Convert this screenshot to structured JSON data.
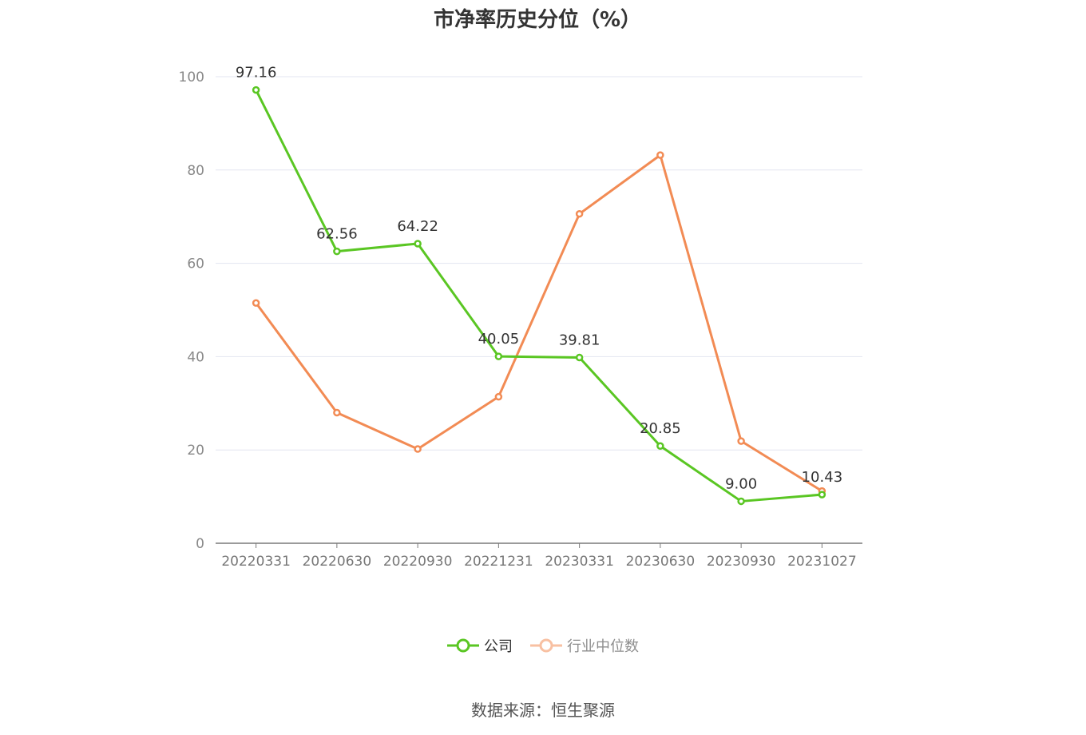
{
  "chart_data": {
    "type": "line",
    "title": "市净率历史分位（%）",
    "categories": [
      "20220331",
      "20220630",
      "20220930",
      "20221231",
      "20230331",
      "20230630",
      "20230930",
      "20231027"
    ],
    "series": [
      {
        "name": "公司",
        "color": "#5ac623",
        "values": [
          97.16,
          62.56,
          64.22,
          40.05,
          39.81,
          20.85,
          9.0,
          10.43
        ],
        "labels": [
          "97.16",
          "62.56",
          "64.22",
          "40.05",
          "39.81",
          "20.85",
          "9.00",
          "10.43"
        ]
      },
      {
        "name": "行业中位数",
        "color": "#f28b54",
        "values": [
          51.5,
          28.0,
          20.2,
          31.4,
          70.6,
          83.2,
          21.9,
          11.2
        ]
      }
    ],
    "yticks": [
      "0",
      "20",
      "40",
      "60",
      "80",
      "100"
    ],
    "ylim": [
      0,
      100
    ],
    "grid": true,
    "legend_position": "bottom"
  },
  "source": "数据来源：恒生聚源"
}
